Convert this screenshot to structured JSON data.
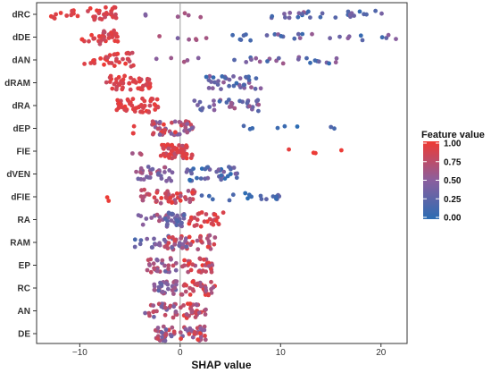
{
  "chart_data": {
    "type": "scatter",
    "subtype": "beeswarm",
    "xlabel": "SHAP value",
    "ylabel": "",
    "xlim": [
      -14.3,
      22.6
    ],
    "xticks": [
      -10,
      0,
      10,
      20
    ],
    "xtick_labels": [
      "−10",
      "0",
      "10",
      "20"
    ],
    "zero_line": true,
    "grid": false,
    "features": [
      "dRC",
      "dDE",
      "dAN",
      "dRAM",
      "dRA",
      "dEP",
      "FIE",
      "dVEN",
      "dFIE",
      "RA",
      "RAM",
      "EP",
      "RC",
      "AN",
      "DE"
    ],
    "legend": {
      "title": "Feature value",
      "placement": "right",
      "range": [
        0,
        1
      ],
      "ticks": [
        "1.00",
        "0.75",
        "0.50",
        "0.25",
        "0.00"
      ],
      "color_low": "#2b6cb3",
      "color_mid": "#8b5f9e",
      "color_high": "#ef3a33"
    },
    "point_spreads": [
      {
        "feature": "dRC",
        "clusters": [
          {
            "x_min": -13.4,
            "x_max": -10.2,
            "value_min": 0.85,
            "value_max": 1.0,
            "count": 12
          },
          {
            "x_min": -9.2,
            "x_max": -6.3,
            "value_min": 0.75,
            "value_max": 1.0,
            "count": 26
          },
          {
            "x_min": -3.5,
            "x_max": 3.2,
            "value_min": 0.35,
            "value_max": 0.7,
            "count": 6
          },
          {
            "x_min": 7.5,
            "x_max": 21.0,
            "value_min": 0.05,
            "value_max": 0.6,
            "count": 28
          }
        ]
      },
      {
        "feature": "dDE",
        "clusters": [
          {
            "x_min": -10.5,
            "x_max": -8.0,
            "value_min": 0.85,
            "value_max": 1.0,
            "count": 10
          },
          {
            "x_min": -8.0,
            "x_max": -6.2,
            "value_min": 0.75,
            "value_max": 1.0,
            "count": 24
          },
          {
            "x_min": -2.8,
            "x_max": 2.7,
            "value_min": 0.4,
            "value_max": 0.75,
            "count": 6
          },
          {
            "x_min": 5.0,
            "x_max": 21.8,
            "value_min": 0.05,
            "value_max": 0.6,
            "count": 26
          }
        ]
      },
      {
        "feature": "dAN",
        "clusters": [
          {
            "x_min": -9.6,
            "x_max": -7.4,
            "value_min": 0.8,
            "value_max": 1.0,
            "count": 9
          },
          {
            "x_min": -7.4,
            "x_max": -4.6,
            "value_min": 0.75,
            "value_max": 1.0,
            "count": 26
          },
          {
            "x_min": -2.5,
            "x_max": 2.6,
            "value_min": 0.4,
            "value_max": 0.7,
            "count": 5
          },
          {
            "x_min": 5.3,
            "x_max": 15.6,
            "value_min": 0.05,
            "value_max": 0.6,
            "count": 22
          }
        ]
      },
      {
        "feature": "dRAM",
        "clusters": [
          {
            "x_min": -7.4,
            "x_max": -2.7,
            "value_min": 0.8,
            "value_max": 1.0,
            "count": 48
          },
          {
            "x_min": 2.6,
            "x_max": 8.4,
            "value_min": 0.05,
            "value_max": 0.6,
            "count": 36
          }
        ]
      },
      {
        "feature": "dRA",
        "clusters": [
          {
            "x_min": -6.4,
            "x_max": -2.1,
            "value_min": 0.8,
            "value_max": 1.0,
            "count": 50
          },
          {
            "x_min": 1.4,
            "x_max": 8.2,
            "value_min": 0.05,
            "value_max": 0.65,
            "count": 34
          }
        ]
      },
      {
        "feature": "dEP",
        "clusters": [
          {
            "x_min": -5.0,
            "x_max": -4.3,
            "value_min": 0.9,
            "value_max": 1.0,
            "count": 3
          },
          {
            "x_min": -2.8,
            "x_max": 1.4,
            "value_min": 0.4,
            "value_max": 1.0,
            "count": 50
          },
          {
            "x_min": 4.6,
            "x_max": 17.0,
            "value_min": 0.0,
            "value_max": 0.2,
            "count": 8
          }
        ]
      },
      {
        "feature": "FIE",
        "clusters": [
          {
            "x_min": -4.9,
            "x_max": -3.8,
            "value_min": 0.6,
            "value_max": 0.8,
            "count": 3
          },
          {
            "x_min": -2.0,
            "x_max": 1.2,
            "value_min": 0.7,
            "value_max": 1.0,
            "count": 55
          },
          {
            "x_min": 10.8,
            "x_max": 17.4,
            "value_min": 0.95,
            "value_max": 1.0,
            "count": 4
          }
        ]
      },
      {
        "feature": "dVEN",
        "clusters": [
          {
            "x_min": -4.4,
            "x_max": -0.6,
            "value_min": 0.3,
            "value_max": 0.7,
            "count": 32
          },
          {
            "x_min": 0.4,
            "x_max": 5.7,
            "value_min": 0.0,
            "value_max": 0.45,
            "count": 38
          }
        ]
      },
      {
        "feature": "dFIE",
        "clusters": [
          {
            "x_min": -7.6,
            "x_max": -7.1,
            "value_min": 0.95,
            "value_max": 1.0,
            "count": 2
          },
          {
            "x_min": -4.0,
            "x_max": 1.6,
            "value_min": 0.6,
            "value_max": 1.0,
            "count": 48
          },
          {
            "x_min": 2.0,
            "x_max": 10.7,
            "value_min": 0.0,
            "value_max": 0.35,
            "count": 18
          }
        ]
      },
      {
        "feature": "RA",
        "clusters": [
          {
            "x_min": -4.3,
            "x_max": -0.8,
            "value_min": 0.35,
            "value_max": 0.7,
            "count": 14
          },
          {
            "x_min": -1.5,
            "x_max": 0.6,
            "value_min": 0.15,
            "value_max": 0.5,
            "count": 28
          },
          {
            "x_min": 0.8,
            "x_max": 4.3,
            "value_min": 0.75,
            "value_max": 1.0,
            "count": 28
          }
        ]
      },
      {
        "feature": "RAM",
        "clusters": [
          {
            "x_min": -4.7,
            "x_max": -1.2,
            "value_min": 0.15,
            "value_max": 0.5,
            "count": 14
          },
          {
            "x_min": -1.6,
            "x_max": 0.8,
            "value_min": 0.3,
            "value_max": 0.9,
            "count": 32
          },
          {
            "x_min": 0.8,
            "x_max": 3.5,
            "value_min": 0.6,
            "value_max": 1.0,
            "count": 20
          }
        ]
      },
      {
        "feature": "EP",
        "clusters": [
          {
            "x_min": -3.3,
            "x_max": -0.3,
            "value_min": 0.3,
            "value_max": 0.8,
            "count": 30
          },
          {
            "x_min": 0.0,
            "x_max": 3.2,
            "value_min": 0.55,
            "value_max": 1.0,
            "count": 32
          }
        ]
      },
      {
        "feature": "RC",
        "clusters": [
          {
            "x_min": -2.8,
            "x_max": -0.3,
            "value_min": 0.2,
            "value_max": 0.7,
            "count": 30
          },
          {
            "x_min": 0.0,
            "x_max": 3.6,
            "value_min": 0.55,
            "value_max": 1.0,
            "count": 36
          }
        ]
      },
      {
        "feature": "AN",
        "clusters": [
          {
            "x_min": -3.5,
            "x_max": -0.3,
            "value_min": 0.3,
            "value_max": 0.8,
            "count": 28
          },
          {
            "x_min": 0.0,
            "x_max": 2.6,
            "value_min": 0.55,
            "value_max": 1.0,
            "count": 30
          }
        ]
      },
      {
        "feature": "DE",
        "clusters": [
          {
            "x_min": -2.6,
            "x_max": -0.3,
            "value_min": 0.3,
            "value_max": 0.9,
            "count": 28
          },
          {
            "x_min": 0.0,
            "x_max": 2.6,
            "value_min": 0.35,
            "value_max": 1.0,
            "count": 32
          }
        ]
      }
    ]
  }
}
